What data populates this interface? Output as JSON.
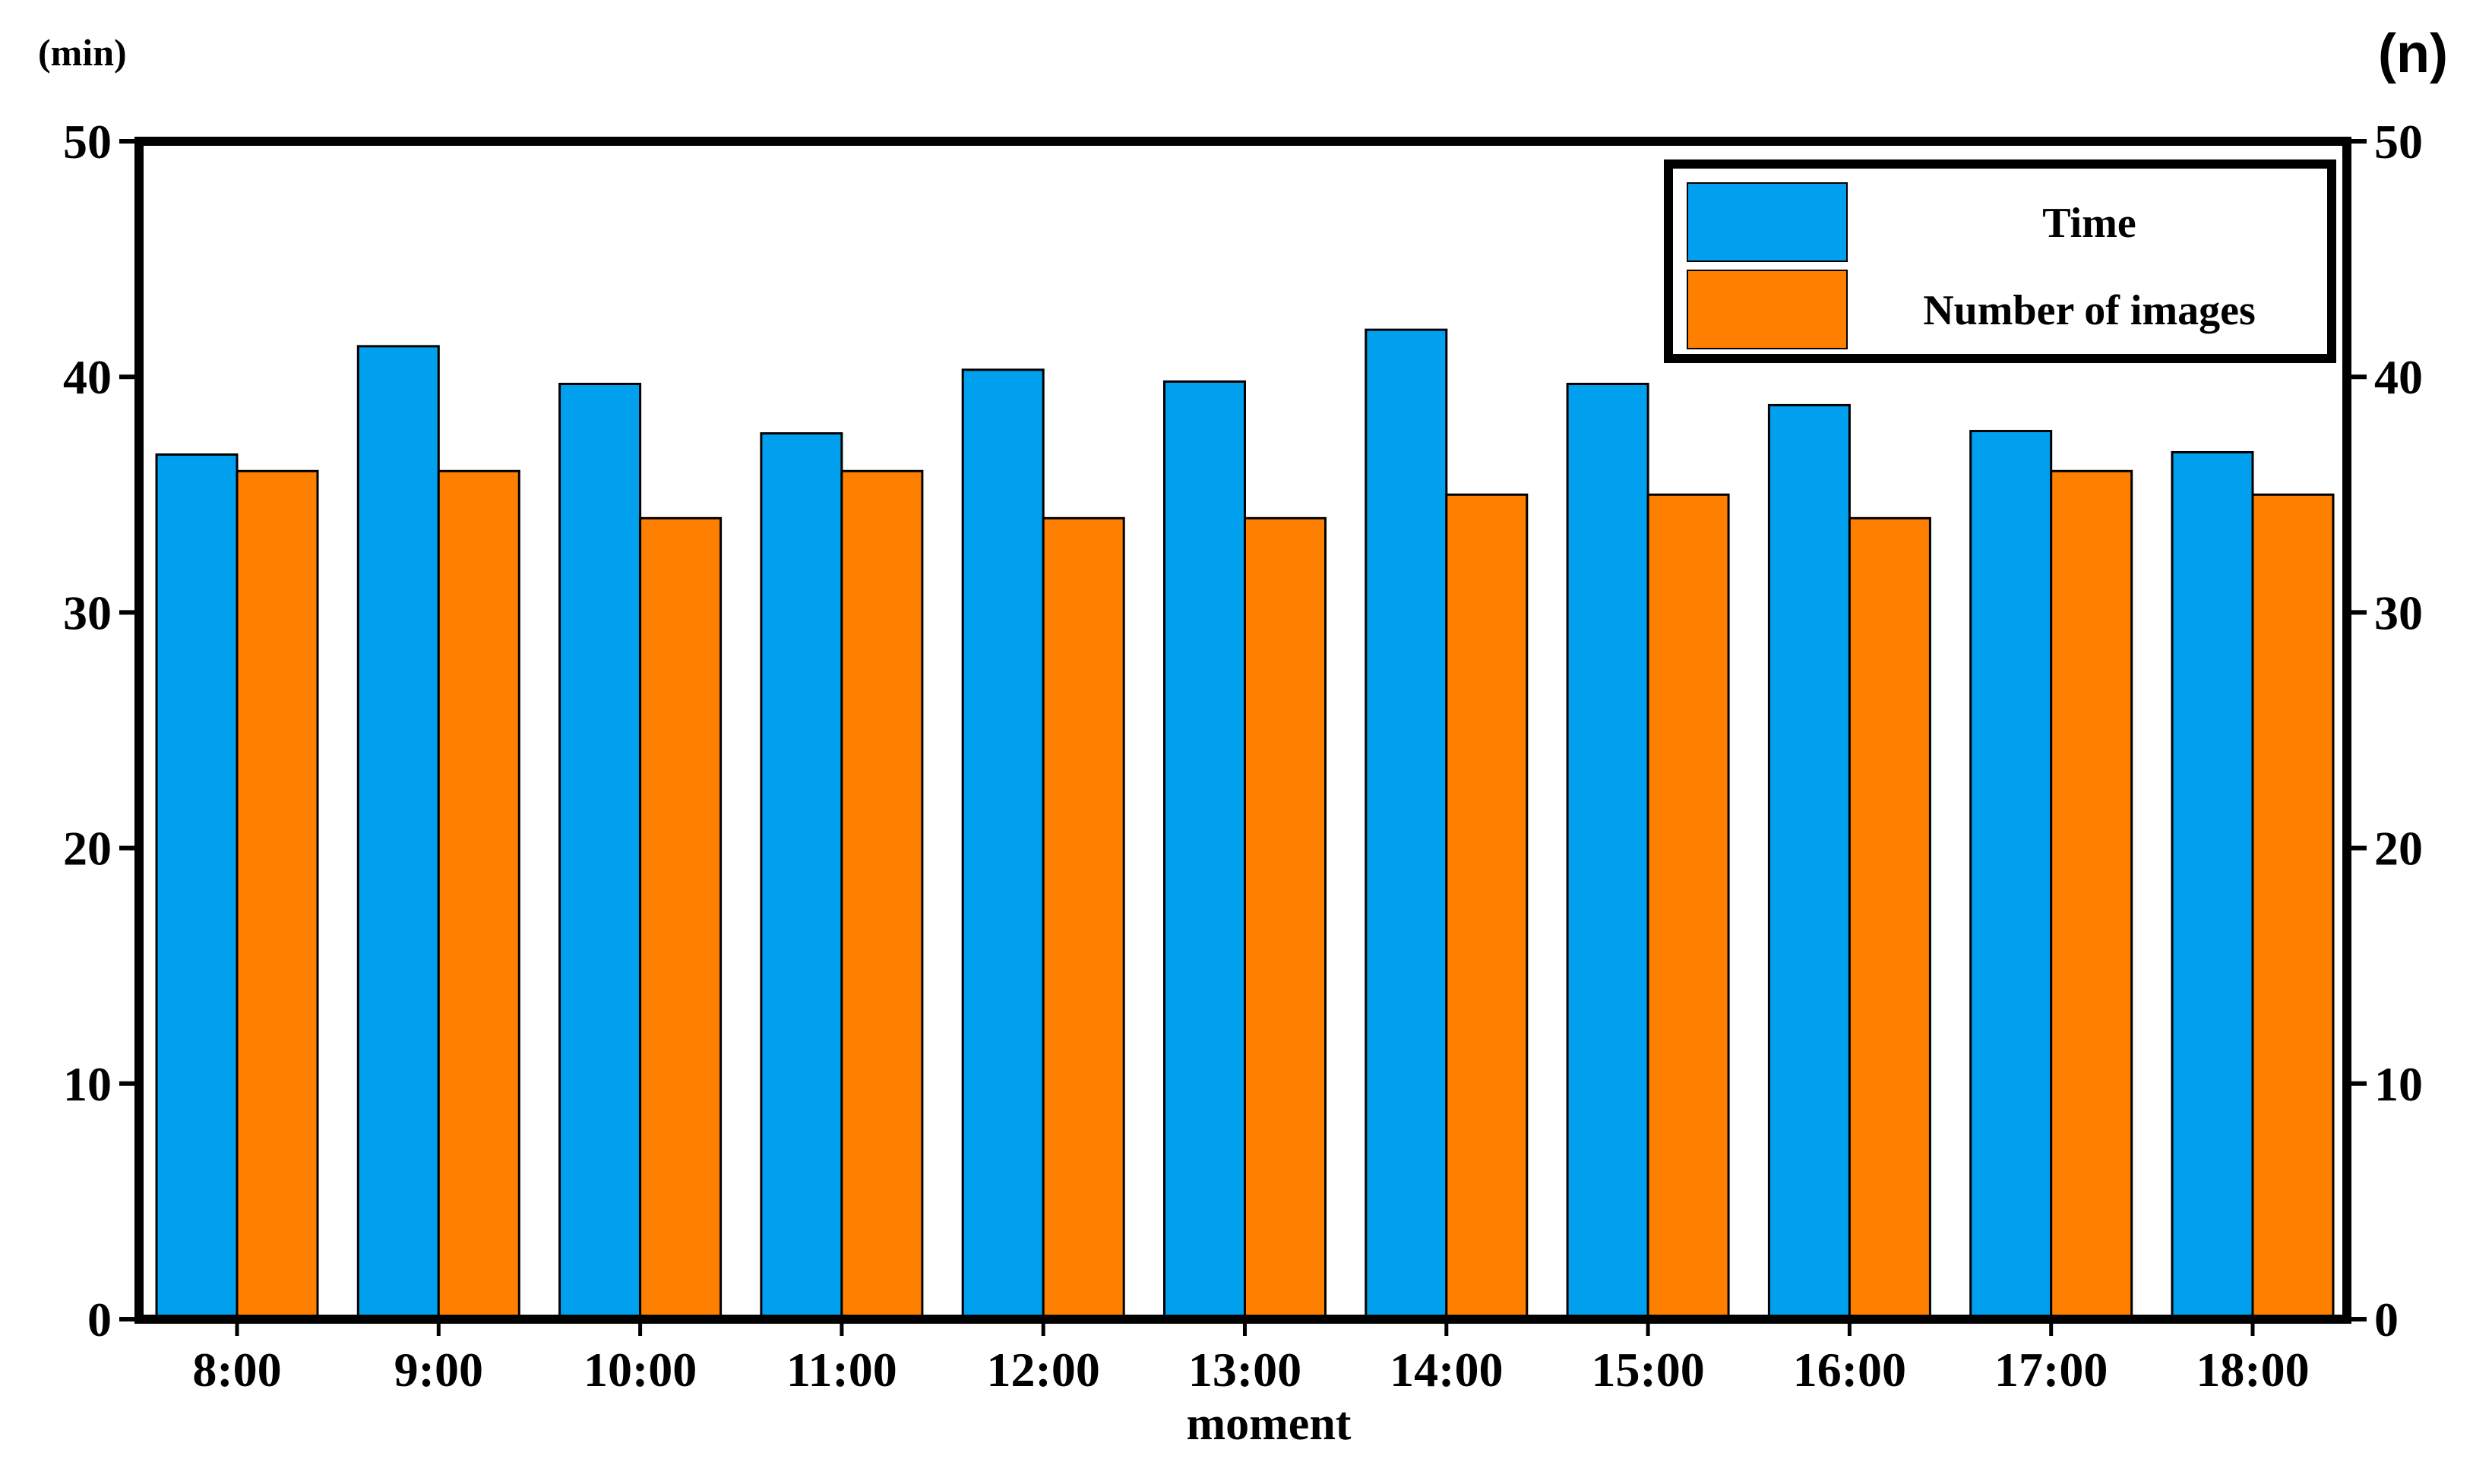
{
  "axis_units": {
    "left": "(min)",
    "right": "(n)"
  },
  "legend": {
    "items": [
      "Time",
      "Number of images"
    ]
  },
  "colors": {
    "time": "#00a0ef",
    "images": "#ff8000",
    "axis": "#000000"
  },
  "chart_data": {
    "type": "bar",
    "categories": [
      "8:00",
      "9:00",
      "10:00",
      "11:00",
      "12:00",
      "13:00",
      "14:00",
      "15:00",
      "16:00",
      "17:00",
      "18:00"
    ],
    "series": [
      {
        "name": "Time",
        "axis": "left",
        "values": [
          36.7,
          41.3,
          39.7,
          37.6,
          40.3,
          39.8,
          42.0,
          39.7,
          38.8,
          37.7,
          36.8
        ]
      },
      {
        "name": "Number of images",
        "axis": "right",
        "values": [
          36,
          36,
          34,
          36,
          34,
          34,
          35,
          35,
          34,
          36,
          35
        ]
      }
    ],
    "xlabel": "moment",
    "ylabel": "(min)",
    "y2label": "(n)",
    "ylim": [
      0,
      50
    ],
    "y2lim": [
      0,
      50
    ],
    "yticks": [
      0,
      10,
      20,
      30,
      40,
      50
    ],
    "y2ticks": [
      0,
      10,
      20,
      30,
      40,
      50
    ],
    "grid": false,
    "legend_position": "top-right"
  }
}
